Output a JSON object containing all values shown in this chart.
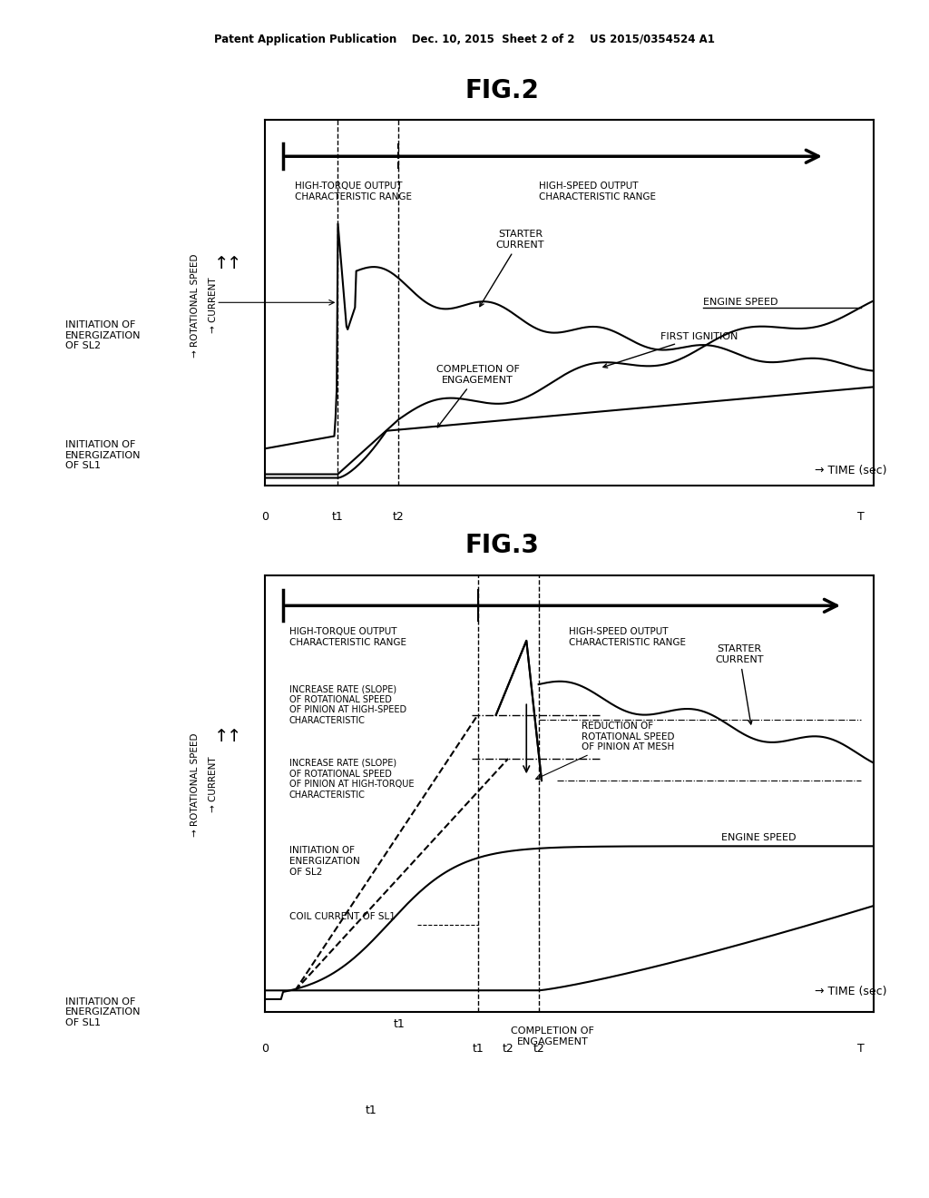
{
  "bg_color": "#ffffff",
  "text_color": "#000000",
  "header_text": "Patent Application Publication    Dec. 10, 2015  Sheet 2 of 2    US 2015/0354524 A1",
  "fig2_title": "FIG.2",
  "fig3_title": "FIG.3",
  "fig2": {
    "y_label_rot": "ROTATIONAL SPEED\n→ CURRENT",
    "x_label": "→ TIME (sec)",
    "x_axis_labels": [
      "0",
      "t1",
      "t2",
      "T"
    ],
    "x_axis_positions": [
      0.0,
      0.12,
      0.22,
      1.0
    ],
    "annotations": [
      "HIGH-TORQUE OUTPUT\nCHARACTERISTIC RANGE",
      "HIGH-SPEED OUTPUT\nCHARACTERISTIC RANGE",
      "STARTER\nCURRENT",
      "ENGINE SPEED",
      "FIRST IGNITION",
      "COMPLETION OF\nENGAGEMENT",
      "INITIATION OF\nENERGIZATION\nOF SL2",
      "INITIATION OF\nENERGIZATION\nOF SL1"
    ]
  },
  "fig3": {
    "y_label_rot": "ROTATIONAL SPEED\n→ CURRENT",
    "x_label": "→ TIME (sec)",
    "annotations": [
      "HIGH-TORQUE OUTPUT\nCHARACTERISTIC RANGE",
      "HIGH-SPEED OUTPUT\nCHARACTERISTIC RANGE",
      "INCREASE RATE (SLOPE)\nOF ROTATIONAL SPEED\nOF PINION AT HIGH-SPEED\nCHARACTERISTIC",
      "INCREASE RATE (SLOPE)\nOF ROTATIONAL SPEED\nOF PINION AT HIGH-TORQUE\nCHARACTERISTIC",
      "INITIATION OF\nENERGIZATION\nOF SL2",
      "COIL CURRENT OF SL1",
      "REDUCTION OF\nROTATIONAL SPEED\nOF PINION AT MESH",
      "ENGINE SPEED",
      "STARTER\nCURRENT",
      "COMPLETION OF\nENGAGEMENT",
      "INITIATION OF\nENERGIZATION\nOF SL1"
    ]
  }
}
